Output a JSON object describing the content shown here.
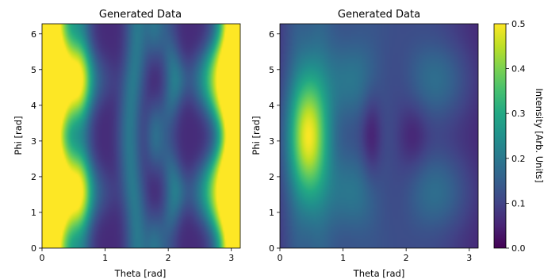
{
  "chart_data": [
    {
      "type": "heatmap",
      "title": "Generated Data",
      "xlabel": "Theta [rad]",
      "ylabel": "Phi [rad]",
      "xlim": [
        0,
        3.14159
      ],
      "ylim": [
        0,
        6.28319
      ],
      "xticks": [
        "0",
        "1",
        "2",
        "3"
      ],
      "yticks": [
        "0",
        "1",
        "2",
        "3",
        "4",
        "5",
        "6"
      ],
      "colormap": "viridis",
      "clim": [
        0,
        0.5
      ],
      "values_note": "Intensity saturates (>=0.5) near theta=0 and theta=pi; minima ~0.05 near theta=1.1, 1.8, 2.3; ridge structure symmetric about phi=pi"
    },
    {
      "type": "heatmap",
      "title": "Generated Data",
      "xlabel": "Theta [rad]",
      "ylabel": "Phi [rad]",
      "xlim": [
        0,
        3.14159
      ],
      "ylim": [
        0,
        6.28319
      ],
      "xticks": [
        "0",
        "1",
        "2",
        "3"
      ],
      "yticks": [
        "0",
        "1",
        "2",
        "3",
        "4",
        "5",
        "6"
      ],
      "colormap": "viridis",
      "clim": [
        0,
        0.5
      ],
      "values_note": "Peak ~0.38 near theta=0.45, phi=pi; minima ~0.0 near theta=1.45 and theta=2.1 at phi=pi; symmetric about phi=pi"
    }
  ],
  "colorbar": {
    "label": "Intensity [Arb. Units]",
    "ticks": [
      "0.0",
      "0.1",
      "0.2",
      "0.3",
      "0.4",
      "0.5"
    ],
    "min": 0,
    "max": 0.5
  },
  "colors": {
    "viridis_stops": [
      "#440154",
      "#482475",
      "#414487",
      "#355f8d",
      "#2a788e",
      "#21918c",
      "#22a884",
      "#44bf70",
      "#7ad151",
      "#bddf26",
      "#fde725"
    ]
  }
}
